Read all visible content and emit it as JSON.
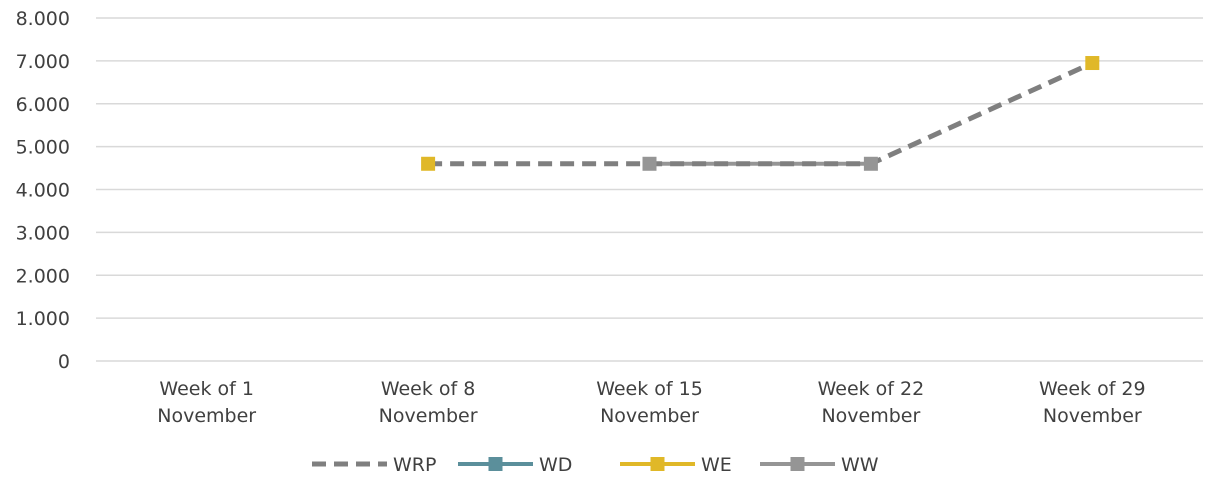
{
  "chart_data": {
    "type": "line",
    "categories": [
      [
        "Week of 1",
        "November"
      ],
      [
        "Week of 8",
        "November"
      ],
      [
        "Week of 15",
        "November"
      ],
      [
        "Week of 22",
        "November"
      ],
      [
        "Week of 29",
        "November"
      ]
    ],
    "ylim": [
      0,
      8000
    ],
    "ytick_values": [
      0,
      1000,
      2000,
      3000,
      4000,
      5000,
      6000,
      7000,
      8000
    ],
    "ytick_labels": [
      "0",
      "1.000",
      "2.000",
      "3.000",
      "4.000",
      "5.000",
      "6.000",
      "7.000",
      "8.000"
    ],
    "grid": true,
    "legend_position": "bottom",
    "series": [
      {
        "name": "WRP",
        "color": "#7f7f7f",
        "line_style": "dashed",
        "marker": "none",
        "values": [
          null,
          4600,
          4600,
          4600,
          6950
        ]
      },
      {
        "name": "WD",
        "color": "#5b8f9b",
        "line_style": "solid",
        "marker": "square",
        "values": [
          null,
          null,
          null,
          null,
          null
        ]
      },
      {
        "name": "WE",
        "color": "#e0b828",
        "line_style": "solid",
        "marker": "square",
        "values": [
          null,
          4600,
          null,
          null,
          6950
        ]
      },
      {
        "name": "WW",
        "color": "#959595",
        "line_style": "solid",
        "marker": "square",
        "values": [
          null,
          null,
          4600,
          4600,
          null
        ]
      }
    ]
  }
}
